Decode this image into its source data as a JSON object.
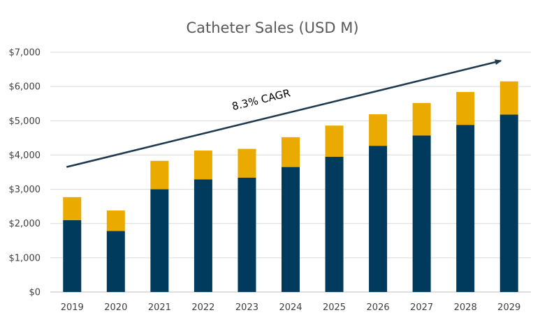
{
  "chart_data": {
    "type": "bar",
    "stacked": true,
    "title": "Catheter Sales (USD M)",
    "xlabel": "",
    "ylabel": "",
    "categories": [
      "2019",
      "2020",
      "2021",
      "2022",
      "2023",
      "2024",
      "2025",
      "2026",
      "2027",
      "2028",
      "2029"
    ],
    "series": [
      {
        "values": [
          2100,
          1780,
          3000,
          3290,
          3340,
          3650,
          3950,
          4270,
          4570,
          4880,
          5180
        ],
        "color": "#003A5D"
      },
      {
        "values": [
          670,
          600,
          830,
          840,
          840,
          870,
          910,
          920,
          950,
          960,
          970
        ],
        "color": "#EBAA00"
      }
    ],
    "ylim": [
      0,
      7000
    ],
    "yticks": [
      0,
      1000,
      2000,
      3000,
      4000,
      5000,
      6000,
      7000
    ],
    "ytick_labels": [
      "$0",
      "$1,000",
      "$2,000",
      "$3,000",
      "$4,000",
      "$5,000",
      "$6,000",
      "$7,000"
    ],
    "grid": true,
    "legend": "none",
    "annotation": {
      "text": "8.3% CAGR",
      "arrow_start": [
        "2019",
        3650
      ],
      "arrow_end": [
        "2029",
        6750
      ],
      "color": "#1F3A4F"
    }
  }
}
